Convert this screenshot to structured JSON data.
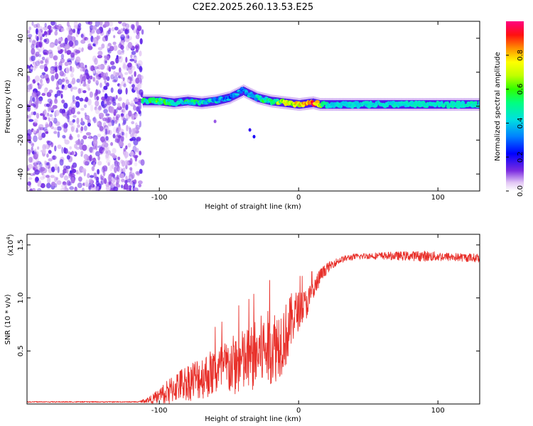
{
  "title": "C2E2.2025.260.13.53.E25",
  "colors": {
    "snr_line": "#e8302a",
    "scatter": "#7b2be0",
    "frame": "#000000",
    "background": "#ffffff"
  },
  "chart_data": [
    {
      "type": "heatmap",
      "name": "spectrogram",
      "xlabel": "Height of straight line (km)",
      "ylabel": "Frequency (Hz)",
      "xlim": [
        -195,
        130
      ],
      "ylim": [
        -50,
        50
      ],
      "xticks": [
        -100,
        0,
        100
      ],
      "xtick_labels": [
        "-100",
        "0",
        "100"
      ],
      "yticks": [
        40,
        20,
        0,
        -20,
        -40
      ],
      "ytick_labels": [
        "40",
        "20",
        "0",
        "-20",
        "-40"
      ],
      "colorbar": {
        "label": "Normalized spectral amplitude",
        "range": [
          0.0,
          1.0
        ],
        "ticks": [
          0.0,
          0.2,
          0.4,
          0.6,
          0.8
        ],
        "tick_labels": [
          "0.0",
          "0.2",
          "0.4",
          "0.6",
          "0.8"
        ]
      },
      "noise_region": {
        "x_range": [
          -195,
          -112
        ],
        "frequency_range": [
          -50,
          50
        ]
      },
      "signal_track": {
        "x": [
          -112,
          -100,
          -90,
          -80,
          -70,
          -60,
          -50,
          -45,
          -40,
          -35,
          -30,
          -25,
          -20,
          -10,
          0,
          10,
          15,
          20,
          50,
          100,
          130
        ],
        "frequency": [
          3,
          3,
          2,
          3,
          2,
          3,
          5,
          7,
          9,
          7,
          5,
          4,
          3,
          2,
          1,
          2,
          1,
          1,
          1,
          1,
          1
        ],
        "amplitude": [
          0.5,
          0.55,
          0.45,
          0.45,
          0.45,
          0.4,
          0.35,
          0.3,
          0.3,
          0.35,
          0.45,
          0.5,
          0.45,
          0.7,
          0.75,
          0.9,
          0.6,
          0.42,
          0.42,
          0.45,
          0.45
        ]
      }
    },
    {
      "type": "line",
      "name": "snr",
      "xlabel": "Height of straight line (km)",
      "ylabel": "SNR (10 * v/v)",
      "y_multiplier": "(x10",
      "y_multiplier_exp": "4",
      "y_multiplier_close": ")",
      "xlim": [
        -195,
        130
      ],
      "ylim": [
        0,
        1.6
      ],
      "xticks": [
        -100,
        0,
        100
      ],
      "xtick_labels": [
        "-100",
        "0",
        "100"
      ],
      "yticks": [
        0.5,
        1.0,
        1.5
      ],
      "ytick_labels": [
        "0.5",
        "1.0",
        "1.5"
      ],
      "series": [
        {
          "name": "SNR",
          "envelope_x": [
            -195,
            -115,
            -105,
            -95,
            -85,
            -75,
            -65,
            -55,
            -45,
            -35,
            -25,
            -15,
            -8,
            -4,
            0,
            5,
            10,
            15,
            20,
            25,
            30,
            35,
            40,
            50,
            70,
            90,
            110,
            130
          ],
          "envelope_y": [
            0.02,
            0.02,
            0.05,
            0.12,
            0.2,
            0.25,
            0.3,
            0.35,
            0.4,
            0.45,
            0.55,
            0.6,
            0.7,
            0.85,
            0.9,
            0.95,
            1.05,
            1.2,
            1.28,
            1.33,
            1.36,
            1.38,
            1.39,
            1.4,
            1.4,
            1.4,
            1.39,
            1.38
          ],
          "spread_y": [
            0.005,
            0.005,
            0.04,
            0.12,
            0.15,
            0.2,
            0.22,
            0.25,
            0.3,
            0.32,
            0.35,
            0.35,
            0.3,
            0.25,
            0.18,
            0.15,
            0.12,
            0.08,
            0.05,
            0.04,
            0.03,
            0.03,
            0.03,
            0.03,
            0.04,
            0.05,
            0.04,
            0.04
          ]
        }
      ]
    }
  ]
}
